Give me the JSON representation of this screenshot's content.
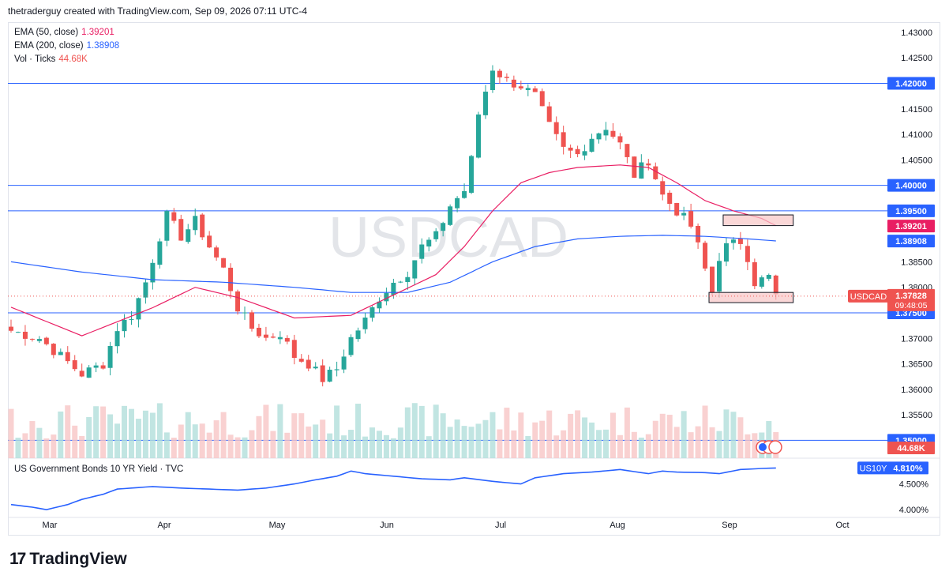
{
  "header": {
    "author_line": "thetraderguy created with TradingView.com, Sep 09, 2026 07:11 UTC-4"
  },
  "watermark": "USDCAD",
  "legend": {
    "ema50_label": "EMA (50, close)",
    "ema50_value": "1.39201",
    "ema200_label": "EMA (200, close)",
    "ema200_value": "1.38908",
    "vol_label": "Vol · Ticks",
    "vol_value": "44.68K",
    "bond_label": "US Government Bonds 10 YR Yield · TVC"
  },
  "colors": {
    "up": "#26a69a",
    "down": "#ef5350",
    "ema50": "#e91e63",
    "ema200": "#2962ff",
    "hline": "#2962ff",
    "bond": "#2962ff",
    "zone": "#f8c6c6"
  },
  "footer": {
    "brand": "TradingView"
  },
  "chart_data": [
    {
      "type": "candlestick",
      "symbol": "USDCAD",
      "x_ticks": [
        "Mar",
        "Apr",
        "May",
        "Jun",
        "Jul",
        "Aug",
        "Sep",
        "Oct"
      ],
      "y_ticks": [
        "1.43000",
        "1.42500",
        "1.42000",
        "1.41500",
        "1.41000",
        "1.40500",
        "1.40000",
        "1.39500",
        "1.38500",
        "1.38000",
        "1.37500",
        "1.37000",
        "1.36500",
        "1.36000",
        "1.35500",
        "1.35000"
      ],
      "ylim": [
        1.3465,
        1.432
      ],
      "horizontal_levels": [
        "1.42000",
        "1.40000",
        "1.39500",
        "1.37500",
        "1.35000"
      ],
      "price_tags": [
        {
          "label": "USDCAD",
          "value": "1.37828",
          "time": "09:48:05",
          "color": "#ef5350"
        },
        {
          "label": "",
          "value": "1.39201",
          "color": "#e91e63"
        },
        {
          "label": "",
          "value": "1.38908",
          "color": "#2962ff"
        },
        {
          "label": "",
          "value": "44.68K",
          "color": "#ef5350"
        }
      ],
      "zones": [
        {
          "y_top": 1.3942,
          "y_bottom": 1.3921,
          "x_start": 101,
          "x_end": 110
        },
        {
          "y_top": 1.379,
          "y_bottom": 1.377,
          "x_start": 99,
          "x_end": 110
        }
      ],
      "anchors": [
        [
          0,
          1.3715
        ],
        [
          4,
          1.37
        ],
        [
          7,
          1.3665
        ],
        [
          10,
          1.363
        ],
        [
          13,
          1.365
        ],
        [
          15,
          1.372
        ],
        [
          17,
          1.3745
        ],
        [
          19,
          1.381
        ],
        [
          21,
          1.39
        ],
        [
          22,
          1.394
        ],
        [
          24,
          1.39
        ],
        [
          26,
          1.393
        ],
        [
          28,
          1.388
        ],
        [
          30,
          1.3835
        ],
        [
          32,
          1.376
        ],
        [
          34,
          1.372
        ],
        [
          36,
          1.37
        ],
        [
          38,
          1.371
        ],
        [
          40,
          1.3665
        ],
        [
          42,
          1.365
        ],
        [
          44,
          1.362
        ],
        [
          46,
          1.364
        ],
        [
          48,
          1.37
        ],
        [
          50,
          1.3735
        ],
        [
          52,
          1.378
        ],
        [
          54,
          1.381
        ],
        [
          56,
          1.383
        ],
        [
          58,
          1.388
        ],
        [
          60,
          1.39
        ],
        [
          62,
          1.396
        ],
        [
          64,
          1.399
        ],
        [
          65,
          1.405
        ],
        [
          66,
          1.414
        ],
        [
          68,
          1.423
        ],
        [
          70,
          1.4205
        ],
        [
          72,
          1.4195
        ],
        [
          74,
          1.4175
        ],
        [
          76,
          1.4115
        ],
        [
          78,
          1.407
        ],
        [
          80,
          1.406
        ],
        [
          82,
          1.4095
        ],
        [
          84,
          1.4115
        ],
        [
          86,
          1.408
        ],
        [
          88,
          1.402
        ],
        [
          90,
          1.405
        ],
        [
          92,
          1.398
        ],
        [
          94,
          1.395
        ],
        [
          96,
          1.392
        ],
        [
          97,
          1.388
        ],
        [
          99,
          1.379
        ],
        [
          100,
          1.386
        ],
        [
          101,
          1.388
        ],
        [
          103,
          1.389
        ],
        [
          104,
          1.386
        ],
        [
          105,
          1.381
        ],
        [
          107,
          1.382
        ],
        [
          108,
          1.3783
        ]
      ],
      "ema50": [
        [
          0,
          1.3761
        ],
        [
          10,
          1.3705
        ],
        [
          20,
          1.376
        ],
        [
          26,
          1.38
        ],
        [
          32,
          1.378
        ],
        [
          40,
          1.374
        ],
        [
          48,
          1.3745
        ],
        [
          54,
          1.3785
        ],
        [
          60,
          1.3825
        ],
        [
          64,
          1.388
        ],
        [
          68,
          1.395
        ],
        [
          72,
          1.4005
        ],
        [
          76,
          1.4025
        ],
        [
          80,
          1.4035
        ],
        [
          86,
          1.404
        ],
        [
          90,
          1.4035
        ],
        [
          94,
          1.4005
        ],
        [
          98,
          1.397
        ],
        [
          102,
          1.395
        ],
        [
          106,
          1.3935
        ],
        [
          108,
          1.3921
        ]
      ],
      "ema200": [
        [
          0,
          1.385
        ],
        [
          10,
          1.383
        ],
        [
          20,
          1.3815
        ],
        [
          30,
          1.381
        ],
        [
          40,
          1.38
        ],
        [
          48,
          1.379
        ],
        [
          56,
          1.379
        ],
        [
          62,
          1.381
        ],
        [
          68,
          1.385
        ],
        [
          74,
          1.388
        ],
        [
          80,
          1.3895
        ],
        [
          86,
          1.39
        ],
        [
          92,
          1.3902
        ],
        [
          98,
          1.39
        ],
        [
          104,
          1.3895
        ],
        [
          108,
          1.3891
        ]
      ],
      "volume_last": "44.68K"
    },
    {
      "type": "line",
      "name": "US Government Bonds 10 YR Yield · TVC",
      "symbol": "US10Y",
      "last_value": "4.810%",
      "y_ticks": [
        "4.500%",
        "4.000%"
      ],
      "ylim": [
        3.85,
        5.0
      ],
      "anchors": [
        [
          0,
          4.1
        ],
        [
          3,
          4.05
        ],
        [
          5,
          4.0
        ],
        [
          8,
          4.1
        ],
        [
          10,
          4.2
        ],
        [
          13,
          4.3
        ],
        [
          15,
          4.4
        ],
        [
          17,
          4.42
        ],
        [
          20,
          4.45
        ],
        [
          24,
          4.42
        ],
        [
          28,
          4.4
        ],
        [
          32,
          4.38
        ],
        [
          36,
          4.42
        ],
        [
          40,
          4.5
        ],
        [
          43,
          4.58
        ],
        [
          46,
          4.65
        ],
        [
          48,
          4.75
        ],
        [
          50,
          4.7
        ],
        [
          54,
          4.65
        ],
        [
          58,
          4.6
        ],
        [
          62,
          4.58
        ],
        [
          64,
          4.62
        ],
        [
          68,
          4.55
        ],
        [
          72,
          4.5
        ],
        [
          74,
          4.62
        ],
        [
          78,
          4.7
        ],
        [
          82,
          4.73
        ],
        [
          86,
          4.78
        ],
        [
          90,
          4.7
        ],
        [
          92,
          4.75
        ],
        [
          94,
          4.73
        ],
        [
          98,
          4.72
        ],
        [
          100,
          4.7
        ],
        [
          103,
          4.78
        ],
        [
          106,
          4.8
        ],
        [
          108,
          4.81
        ]
      ]
    }
  ]
}
